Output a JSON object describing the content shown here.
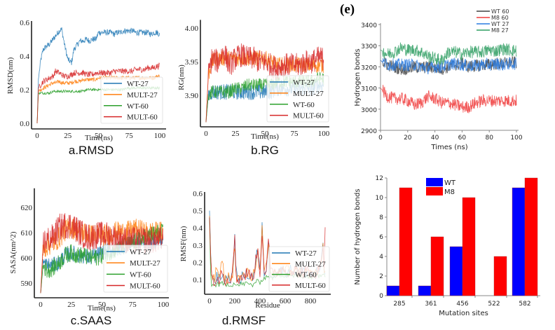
{
  "figure_label": "(e)",
  "chart_data": [
    {
      "id": "a",
      "type": "line",
      "caption": "a.RMSD",
      "xlabel": "Time(ns)",
      "ylabel": "RMSD(nm)",
      "xlim": [
        0,
        100
      ],
      "ylim": [
        0,
        0.6
      ],
      "xticks": [
        0,
        25,
        50,
        75,
        100
      ],
      "yticks": [
        0.0,
        0.2,
        0.4,
        0.6
      ],
      "ytick_labels": [
        "0.0",
        "0.2",
        "0.4",
        "0.6"
      ],
      "legend_position": "lower-right",
      "x": [
        0,
        1,
        3,
        5,
        8,
        10,
        13,
        15,
        18,
        20,
        22,
        25,
        28,
        30,
        33,
        35,
        38,
        40,
        43,
        45,
        48,
        50,
        53,
        55,
        58,
        60,
        63,
        65,
        68,
        70,
        73,
        75,
        78,
        80,
        83,
        85,
        88,
        90,
        93,
        95,
        98,
        100
      ],
      "series": [
        {
          "name": "WT-27",
          "color": "#1f77b4",
          "values": [
            0,
            0.26,
            0.38,
            0.44,
            0.46,
            0.47,
            0.5,
            0.52,
            0.55,
            0.56,
            0.48,
            0.38,
            0.36,
            0.44,
            0.47,
            0.49,
            0.49,
            0.5,
            0.49,
            0.5,
            0.5,
            0.54,
            0.54,
            0.54,
            0.54,
            0.54,
            0.53,
            0.54,
            0.54,
            0.55,
            0.55,
            0.55,
            0.55,
            0.54,
            0.54,
            0.54,
            0.54,
            0.54,
            0.53,
            0.54,
            0.54,
            0.53
          ]
        },
        {
          "name": "MULT-27",
          "color": "#ff7f0e",
          "values": [
            0,
            0.19,
            0.2,
            0.21,
            0.22,
            0.23,
            0.24,
            0.24,
            0.25,
            0.24,
            0.24,
            0.24,
            0.24,
            0.25,
            0.25,
            0.25,
            0.26,
            0.26,
            0.26,
            0.26,
            0.26,
            0.27,
            0.27,
            0.27,
            0.27,
            0.27,
            0.27,
            0.27,
            0.27,
            0.27,
            0.27,
            0.27,
            0.27,
            0.27,
            0.27,
            0.27,
            0.27,
            0.27,
            0.27,
            0.27,
            0.28,
            0.28
          ]
        },
        {
          "name": "WT-60",
          "color": "#2ca02c",
          "values": [
            0,
            0.18,
            0.18,
            0.18,
            0.18,
            0.18,
            0.19,
            0.19,
            0.19,
            0.19,
            0.19,
            0.19,
            0.19,
            0.19,
            0.19,
            0.19,
            0.19,
            0.2,
            0.2,
            0.2,
            0.2,
            0.2,
            0.2,
            0.2,
            0.2,
            0.2,
            0.2,
            0.2,
            0.2,
            0.2,
            0.21,
            0.21,
            0.21,
            0.21,
            0.21,
            0.21,
            0.21,
            0.21,
            0.21,
            0.21,
            0.21,
            0.21
          ]
        },
        {
          "name": "MULT-60",
          "color": "#d62728",
          "values": [
            0,
            0.21,
            0.23,
            0.25,
            0.26,
            0.27,
            0.28,
            0.31,
            0.3,
            0.29,
            0.28,
            0.28,
            0.29,
            0.3,
            0.3,
            0.3,
            0.3,
            0.29,
            0.29,
            0.29,
            0.3,
            0.3,
            0.3,
            0.3,
            0.3,
            0.3,
            0.31,
            0.31,
            0.31,
            0.31,
            0.31,
            0.31,
            0.31,
            0.32,
            0.32,
            0.32,
            0.32,
            0.33,
            0.33,
            0.33,
            0.34,
            0.34
          ]
        }
      ]
    },
    {
      "id": "b",
      "type": "line",
      "caption": "b.RG",
      "xlabel": "Time(ns)",
      "ylabel": "RG(nm)",
      "xlim": [
        0,
        100
      ],
      "ylim": [
        3.855,
        4.01
      ],
      "xticks": [
        0,
        25,
        50,
        75,
        100
      ],
      "yticks": [
        3.9,
        3.95,
        4.0
      ],
      "ytick_labels": [
        "3.90",
        "3.95",
        "4.00"
      ],
      "legend_position": "lower-right",
      "x": [
        0,
        2,
        5,
        10,
        15,
        20,
        25,
        30,
        35,
        40,
        45,
        50,
        55,
        60,
        65,
        70,
        75,
        80,
        85,
        90,
        95,
        100
      ],
      "series": [
        {
          "name": "WT-27",
          "color": "#1f77b4",
          "values": [
            3.86,
            3.9,
            3.905,
            3.905,
            3.905,
            3.905,
            3.905,
            3.905,
            3.905,
            3.905,
            3.905,
            3.905,
            3.905,
            3.91,
            3.91,
            3.91,
            3.91,
            3.91,
            3.91,
            3.91,
            3.915,
            3.915
          ]
        },
        {
          "name": "MULT-27",
          "color": "#ff7f0e",
          "values": [
            3.86,
            3.93,
            3.95,
            3.955,
            3.955,
            3.955,
            3.955,
            3.955,
            3.955,
            3.955,
            3.955,
            3.955,
            3.95,
            3.945,
            3.945,
            3.945,
            3.945,
            3.945,
            3.945,
            3.945,
            3.945,
            3.945
          ]
        },
        {
          "name": "WT-60",
          "color": "#2ca02c",
          "values": [
            3.86,
            3.9,
            3.905,
            3.905,
            3.905,
            3.905,
            3.91,
            3.91,
            3.915,
            3.915,
            3.915,
            3.915,
            3.915,
            3.92,
            3.92,
            3.92,
            3.92,
            3.92,
            3.92,
            3.92,
            3.925,
            3.925
          ]
        },
        {
          "name": "MULT-60",
          "color": "#d62728",
          "values": [
            3.86,
            3.93,
            3.955,
            3.95,
            3.965,
            3.945,
            3.955,
            3.96,
            3.955,
            3.955,
            3.95,
            3.95,
            3.945,
            3.94,
            3.945,
            3.945,
            3.945,
            3.945,
            3.95,
            3.95,
            3.955,
            3.955
          ]
        }
      ]
    },
    {
      "id": "e",
      "type": "line",
      "caption": "",
      "xlabel": "Times (ns)",
      "ylabel": "Hydrogen bonds",
      "xlim": [
        0,
        100
      ],
      "ylim": [
        2900,
        3400
      ],
      "xticks": [
        0,
        20,
        40,
        60,
        80,
        100
      ],
      "yticks": [
        2900,
        3000,
        3100,
        3200,
        3300,
        3400
      ],
      "ytick_labels": [
        "2900",
        "3000",
        "3100",
        "3200",
        "3300",
        "3400"
      ],
      "legend_position": "top-right",
      "x": [
        0,
        5,
        10,
        15,
        20,
        25,
        30,
        35,
        40,
        45,
        50,
        55,
        60,
        65,
        70,
        75,
        80,
        85,
        90,
        95,
        100
      ],
      "series": [
        {
          "name": "WT 60",
          "color": "#404040",
          "values": [
            3230,
            3210,
            3200,
            3190,
            3190,
            3200,
            3195,
            3200,
            3195,
            3190,
            3200,
            3210,
            3215,
            3200,
            3205,
            3210,
            3210,
            3215,
            3215,
            3220,
            3220
          ]
        },
        {
          "name": "M8 60",
          "color": "#f03c3c",
          "values": [
            3100,
            3060,
            3050,
            3050,
            3040,
            3020,
            3030,
            3060,
            3050,
            3030,
            3030,
            3020,
            3010,
            3010,
            3030,
            3040,
            3040,
            3040,
            3040,
            3040,
            3040
          ]
        },
        {
          "name": "WT 27",
          "color": "#2a7be0",
          "values": [
            3230,
            3210,
            3210,
            3210,
            3210,
            3210,
            3200,
            3195,
            3200,
            3200,
            3210,
            3215,
            3210,
            3205,
            3205,
            3210,
            3210,
            3215,
            3210,
            3215,
            3215
          ]
        },
        {
          "name": "M8 27",
          "color": "#2e9e62",
          "values": [
            3280,
            3260,
            3270,
            3290,
            3280,
            3280,
            3270,
            3250,
            3240,
            3230,
            3270,
            3270,
            3260,
            3270,
            3270,
            3270,
            3280,
            3275,
            3285,
            3280,
            3275
          ]
        }
      ]
    },
    {
      "id": "c",
      "type": "line",
      "caption": "c.SAAS",
      "xlabel": "Time(ns)",
      "ylabel": "SASA(nm^2)",
      "xlim": [
        0,
        100
      ],
      "ylim": [
        584,
        627
      ],
      "xticks": [
        0,
        25,
        50,
        75,
        100
      ],
      "yticks": [
        590,
        600,
        610,
        620
      ],
      "ytick_labels": [
        "590",
        "600",
        "610",
        "620"
      ],
      "legend_position": "lower-right",
      "x": [
        0,
        2,
        5,
        10,
        15,
        20,
        25,
        30,
        35,
        40,
        45,
        50,
        55,
        60,
        65,
        70,
        75,
        80,
        85,
        90,
        95,
        100
      ],
      "series": [
        {
          "name": "WT-27",
          "color": "#1f77b4",
          "values": [
            586,
            598,
            597,
            597,
            598,
            601,
            602,
            601,
            601,
            600,
            601,
            602,
            603,
            603,
            604,
            605,
            606,
            606,
            606,
            606,
            607,
            607
          ]
        },
        {
          "name": "MULT-27",
          "color": "#ff7f0e",
          "values": [
            586,
            603,
            605,
            606,
            608,
            611,
            612,
            611,
            610,
            609,
            609,
            609,
            609,
            610,
            610,
            610,
            611,
            611,
            610,
            610,
            610,
            610
          ]
        },
        {
          "name": "WT-60",
          "color": "#2ca02c",
          "values": [
            586,
            597,
            595,
            596,
            598,
            601,
            602,
            601,
            601,
            600,
            600,
            601,
            602,
            603,
            604,
            605,
            606,
            607,
            608,
            609,
            610,
            610
          ]
        },
        {
          "name": "MULT-60",
          "color": "#d62728",
          "values": [
            586,
            606,
            607,
            608,
            612,
            613,
            613,
            611,
            609,
            608,
            609,
            609,
            609,
            608,
            608,
            607,
            607,
            607,
            607,
            607,
            607,
            607
          ]
        }
      ]
    },
    {
      "id": "d",
      "type": "line",
      "caption": "d.RMSF",
      "xlabel": "Residue",
      "ylabel": "RMSF(nm)",
      "xlim": [
        -25,
        960
      ],
      "ylim": [
        0.015,
        0.6
      ],
      "xticks": [
        0,
        200,
        400,
        600,
        800
      ],
      "yticks": [
        0.1,
        0.2,
        0.3,
        0.4,
        0.5,
        0.6
      ],
      "ytick_labels": [
        "0.1",
        "0.2",
        "0.3",
        "0.4",
        "0.5",
        "0.6"
      ],
      "legend_position": "lower-right",
      "x": [
        0,
        10,
        20,
        40,
        60,
        80,
        100,
        120,
        150,
        180,
        200,
        210,
        230,
        260,
        300,
        340,
        360,
        380,
        400,
        420,
        430,
        450,
        470,
        480,
        520,
        560,
        600,
        650,
        700,
        750,
        800,
        850,
        880,
        900,
        910,
        920
      ],
      "series": [
        {
          "name": "WT-27",
          "color": "#1f77b4",
          "values": [
            0.5,
            0.22,
            0.1,
            0.08,
            0.1,
            0.08,
            0.12,
            0.08,
            0.1,
            0.09,
            0.34,
            0.1,
            0.09,
            0.1,
            0.12,
            0.1,
            0.15,
            0.27,
            0.12,
            0.44,
            0.12,
            0.15,
            0.3,
            0.12,
            0.13,
            0.14,
            0.14,
            0.14,
            0.13,
            0.13,
            0.12,
            0.13,
            0.14,
            0.28,
            0.12,
            0.12
          ]
        },
        {
          "name": "MULT-27",
          "color": "#ff7f0e",
          "values": [
            0.47,
            0.2,
            0.1,
            0.08,
            0.17,
            0.08,
            0.2,
            0.08,
            0.1,
            0.09,
            0.3,
            0.1,
            0.09,
            0.1,
            0.12,
            0.1,
            0.15,
            0.27,
            0.12,
            0.42,
            0.12,
            0.15,
            0.3,
            0.12,
            0.13,
            0.14,
            0.14,
            0.14,
            0.13,
            0.13,
            0.12,
            0.13,
            0.14,
            0.28,
            0.12,
            0.12
          ]
        },
        {
          "name": "WT-60",
          "color": "#2ca02c",
          "values": [
            0.46,
            0.08,
            0.06,
            0.06,
            0.07,
            0.06,
            0.07,
            0.06,
            0.07,
            0.06,
            0.08,
            0.06,
            0.06,
            0.07,
            0.07,
            0.06,
            0.08,
            0.08,
            0.08,
            0.1,
            0.1,
            0.11,
            0.12,
            0.1,
            0.11,
            0.12,
            0.12,
            0.12,
            0.11,
            0.11,
            0.11,
            0.12,
            0.12,
            0.13,
            0.11,
            0.11
          ]
        },
        {
          "name": "MULT-60",
          "color": "#d62728",
          "values": [
            0.46,
            0.2,
            0.1,
            0.08,
            0.12,
            0.08,
            0.15,
            0.08,
            0.1,
            0.09,
            0.35,
            0.1,
            0.09,
            0.1,
            0.12,
            0.1,
            0.15,
            0.27,
            0.12,
            0.42,
            0.12,
            0.15,
            0.34,
            0.12,
            0.13,
            0.14,
            0.14,
            0.14,
            0.13,
            0.13,
            0.12,
            0.13,
            0.14,
            0.3,
            0.12,
            0.58
          ]
        }
      ]
    },
    {
      "id": "f",
      "type": "bar",
      "caption": "",
      "xlabel": "Mutation sites",
      "ylabel": "Number of hydrogen bonds",
      "ylim": [
        0,
        12
      ],
      "yticks": [
        0,
        2,
        4,
        6,
        8,
        10,
        12
      ],
      "ytick_labels": [
        "0",
        "2",
        "4",
        "6",
        "8",
        "10",
        "12"
      ],
      "legend_position": "top-center",
      "categories": [
        "285",
        "361",
        "456",
        "522",
        "582"
      ],
      "series": [
        {
          "name": "WT",
          "color": "#0000ff",
          "values": [
            1,
            1,
            5,
            0,
            11
          ]
        },
        {
          "name": "M8",
          "color": "#ff0000",
          "values": [
            11,
            6,
            10,
            4,
            12
          ]
        }
      ]
    }
  ]
}
